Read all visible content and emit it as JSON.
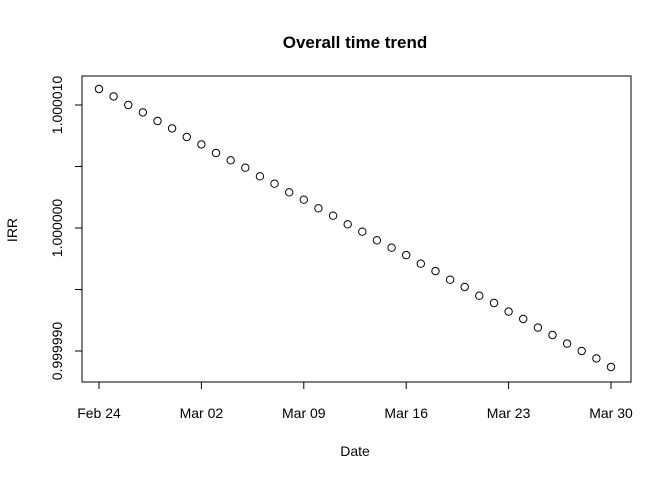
{
  "chart_data": {
    "type": "scatter",
    "title": "Overall time trend",
    "xlabel": "Date",
    "ylabel": "IRR",
    "x_start": "Feb 24",
    "x_end": "Mar 30",
    "x_ticks": [
      {
        "value": "Feb 24",
        "label": "Feb 24"
      },
      {
        "value": "Mar 02",
        "label": "Mar 02"
      },
      {
        "value": "Mar 09",
        "label": "Mar 09"
      },
      {
        "value": "Mar 16",
        "label": "Mar 16"
      },
      {
        "value": "Mar 23",
        "label": "Mar 23"
      },
      {
        "value": "Mar 30",
        "label": "Mar 30"
      }
    ],
    "y_ticks": [
      {
        "value": 0.99999,
        "label": "0.999990"
      },
      {
        "value": 0.999995,
        "label": ""
      },
      {
        "value": 1.0,
        "label": "1.000000"
      },
      {
        "value": 1.000005,
        "label": ""
      },
      {
        "value": 1.00001,
        "label": "1.000010"
      }
    ],
    "ylim": [
      0.9999888,
      1.0000109
    ],
    "series": [
      {
        "x": [
          "Feb 24",
          "Feb 25",
          "Feb 26",
          "Feb 27",
          "Feb 28",
          "Feb 29",
          "Mar 01",
          "Mar 02",
          "Mar 03",
          "Mar 04",
          "Mar 05",
          "Mar 06",
          "Mar 07",
          "Mar 08",
          "Mar 09",
          "Mar 10",
          "Mar 11",
          "Mar 12",
          "Mar 13",
          "Mar 14",
          "Mar 15",
          "Mar 16",
          "Mar 17",
          "Mar 18",
          "Mar 19",
          "Mar 20",
          "Mar 21",
          "Mar 22",
          "Mar 23",
          "Mar 24",
          "Mar 25",
          "Mar 26",
          "Mar 27",
          "Mar 28",
          "Mar 29",
          "Mar 30"
        ],
        "y": [
          1.0000113,
          1.0000107,
          1.00001,
          1.0000094,
          1.0000087,
          1.0000081,
          1.0000074,
          1.0000068,
          1.0000061,
          1.0000055,
          1.0000049,
          1.0000042,
          1.0000036,
          1.0000029,
          1.0000023,
          1.0000016,
          1.000001,
          1.0000003,
          0.9999997,
          0.999999,
          0.9999984,
          0.9999978,
          0.9999971,
          0.9999965,
          0.9999958,
          0.9999952,
          0.9999945,
          0.9999939,
          0.9999932,
          0.9999926,
          0.9999919,
          0.9999913,
          0.9999906,
          0.99999,
          0.9999894,
          0.9999887
        ]
      }
    ]
  }
}
